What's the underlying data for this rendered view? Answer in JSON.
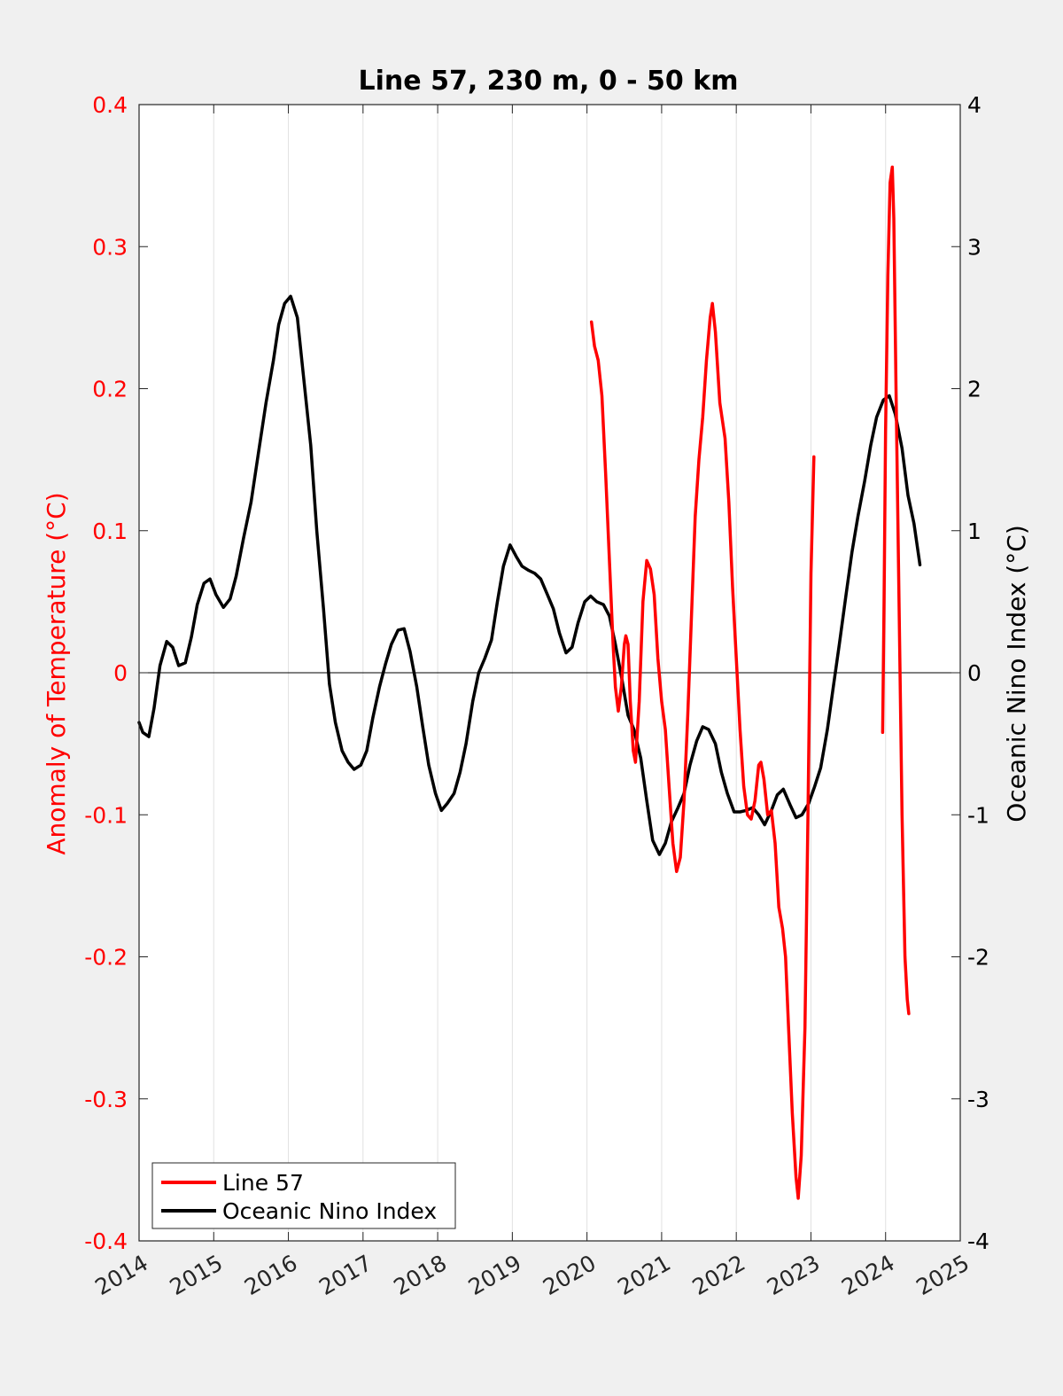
{
  "chart_data": {
    "type": "line",
    "title": "Line 57, 230 m, 0 - 50 km",
    "xlabel": "",
    "ylabel_left": "Anomaly of Temperature (°C)",
    "ylabel_right": "Oceanic Nino Index (°C)",
    "xlim": [
      2014,
      2025
    ],
    "ylim_left": [
      -0.4,
      0.4
    ],
    "ylim_right": [
      -4,
      4
    ],
    "x_ticks": [
      "2014",
      "2015",
      "2016",
      "2017",
      "2018",
      "2019",
      "2020",
      "2021",
      "2022",
      "2023",
      "2024",
      "2025"
    ],
    "y_left_ticks": [
      "-0.4",
      "-0.3",
      "-0.2",
      "-0.1",
      "0",
      "0.1",
      "0.2",
      "0.3",
      "0.4"
    ],
    "y_right_ticks": [
      "-4",
      "-3",
      "-2",
      "-1",
      "0",
      "1",
      "2",
      "3",
      "4"
    ],
    "grid": "vertical",
    "zero_line": true,
    "legend_position": "bottom-left",
    "colors": {
      "line57": "#ff0000",
      "oni": "#000000",
      "left_axis": "#ff0000",
      "right_axis": "#000000"
    },
    "series": [
      {
        "name": "Line 57",
        "axis": "left",
        "segments": [
          [
            [
              2020.06,
              0.247
            ],
            [
              2020.1,
              0.23
            ],
            [
              2020.15,
              0.22
            ],
            [
              2020.2,
              0.195
            ],
            [
              2020.25,
              0.14
            ],
            [
              2020.3,
              0.08
            ],
            [
              2020.35,
              0.02
            ],
            [
              2020.38,
              -0.01
            ],
            [
              2020.42,
              -0.027
            ],
            [
              2020.46,
              -0.01
            ],
            [
              2020.5,
              0.02
            ],
            [
              2020.52,
              0.026
            ],
            [
              2020.55,
              0.02
            ],
            [
              2020.58,
              -0.02
            ],
            [
              2020.62,
              -0.055
            ],
            [
              2020.65,
              -0.063
            ],
            [
              2020.7,
              -0.02
            ],
            [
              2020.75,
              0.05
            ],
            [
              2020.8,
              0.079
            ],
            [
              2020.85,
              0.073
            ],
            [
              2020.9,
              0.055
            ],
            [
              2020.95,
              0.01
            ],
            [
              2021.0,
              -0.02
            ],
            [
              2021.05,
              -0.04
            ],
            [
              2021.1,
              -0.08
            ],
            [
              2021.15,
              -0.12
            ],
            [
              2021.2,
              -0.14
            ],
            [
              2021.25,
              -0.13
            ],
            [
              2021.3,
              -0.09
            ],
            [
              2021.35,
              -0.03
            ],
            [
              2021.4,
              0.04
            ],
            [
              2021.45,
              0.11
            ],
            [
              2021.5,
              0.15
            ],
            [
              2021.55,
              0.18
            ],
            [
              2021.6,
              0.22
            ],
            [
              2021.65,
              0.25
            ],
            [
              2021.68,
              0.26
            ],
            [
              2021.72,
              0.24
            ],
            [
              2021.78,
              0.19
            ],
            [
              2021.85,
              0.165
            ],
            [
              2021.9,
              0.12
            ],
            [
              2021.95,
              0.06
            ],
            [
              2022.0,
              0.01
            ],
            [
              2022.05,
              -0.04
            ],
            [
              2022.1,
              -0.08
            ],
            [
              2022.15,
              -0.1
            ],
            [
              2022.2,
              -0.103
            ],
            [
              2022.25,
              -0.09
            ],
            [
              2022.3,
              -0.065
            ],
            [
              2022.33,
              -0.063
            ],
            [
              2022.37,
              -0.075
            ],
            [
              2022.42,
              -0.1
            ],
            [
              2022.47,
              -0.097
            ],
            [
              2022.52,
              -0.12
            ],
            [
              2022.57,
              -0.165
            ],
            [
              2022.62,
              -0.18
            ],
            [
              2022.66,
              -0.2
            ],
            [
              2022.7,
              -0.25
            ],
            [
              2022.75,
              -0.31
            ],
            [
              2022.8,
              -0.355
            ],
            [
              2022.83,
              -0.37
            ],
            [
              2022.87,
              -0.34
            ],
            [
              2022.92,
              -0.25
            ],
            [
              2022.96,
              -0.1
            ],
            [
              2023.0,
              0.07
            ],
            [
              2023.04,
              0.152
            ]
          ],
          [
            [
              2023.96,
              -0.042
            ],
            [
              2023.98,
              0.05
            ],
            [
              2024.0,
              0.17
            ],
            [
              2024.03,
              0.28
            ],
            [
              2024.06,
              0.345
            ],
            [
              2024.09,
              0.356
            ],
            [
              2024.11,
              0.32
            ],
            [
              2024.14,
              0.2
            ],
            [
              2024.18,
              0.05
            ],
            [
              2024.22,
              -0.1
            ],
            [
              2024.26,
              -0.2
            ],
            [
              2024.29,
              -0.23
            ],
            [
              2024.31,
              -0.24
            ]
          ]
        ]
      },
      {
        "name": "Oceanic Nino Index",
        "axis": "right",
        "points": [
          [
            2014.0,
            -0.35
          ],
          [
            2014.05,
            -0.42
          ],
          [
            2014.13,
            -0.45
          ],
          [
            2014.2,
            -0.25
          ],
          [
            2014.28,
            0.05
          ],
          [
            2014.37,
            0.22
          ],
          [
            2014.45,
            0.18
          ],
          [
            2014.53,
            0.05
          ],
          [
            2014.62,
            0.07
          ],
          [
            2014.7,
            0.25
          ],
          [
            2014.78,
            0.48
          ],
          [
            2014.87,
            0.63
          ],
          [
            2014.95,
            0.66
          ],
          [
            2015.03,
            0.55
          ],
          [
            2015.13,
            0.46
          ],
          [
            2015.22,
            0.52
          ],
          [
            2015.3,
            0.68
          ],
          [
            2015.4,
            0.95
          ],
          [
            2015.5,
            1.2
          ],
          [
            2015.6,
            1.55
          ],
          [
            2015.7,
            1.9
          ],
          [
            2015.8,
            2.2
          ],
          [
            2015.87,
            2.45
          ],
          [
            2015.95,
            2.6
          ],
          [
            2016.03,
            2.65
          ],
          [
            2016.12,
            2.5
          ],
          [
            2016.2,
            2.1
          ],
          [
            2016.3,
            1.6
          ],
          [
            2016.38,
            1.0
          ],
          [
            2016.47,
            0.45
          ],
          [
            2016.55,
            -0.08
          ],
          [
            2016.63,
            -0.35
          ],
          [
            2016.72,
            -0.55
          ],
          [
            2016.8,
            -0.63
          ],
          [
            2016.88,
            -0.68
          ],
          [
            2016.97,
            -0.65
          ],
          [
            2017.05,
            -0.55
          ],
          [
            2017.13,
            -0.32
          ],
          [
            2017.22,
            -0.1
          ],
          [
            2017.3,
            0.06
          ],
          [
            2017.38,
            0.2
          ],
          [
            2017.47,
            0.3
          ],
          [
            2017.55,
            0.31
          ],
          [
            2017.63,
            0.15
          ],
          [
            2017.72,
            -0.1
          ],
          [
            2017.8,
            -0.38
          ],
          [
            2017.88,
            -0.65
          ],
          [
            2017.97,
            -0.85
          ],
          [
            2018.05,
            -0.97
          ],
          [
            2018.13,
            -0.92
          ],
          [
            2018.22,
            -0.85
          ],
          [
            2018.3,
            -0.7
          ],
          [
            2018.38,
            -0.5
          ],
          [
            2018.47,
            -0.2
          ],
          [
            2018.55,
            0.0
          ],
          [
            2018.63,
            0.1
          ],
          [
            2018.72,
            0.23
          ],
          [
            2018.8,
            0.5
          ],
          [
            2018.88,
            0.75
          ],
          [
            2018.97,
            0.9
          ],
          [
            2019.05,
            0.82
          ],
          [
            2019.13,
            0.75
          ],
          [
            2019.22,
            0.72
          ],
          [
            2019.3,
            0.7
          ],
          [
            2019.38,
            0.66
          ],
          [
            2019.47,
            0.55
          ],
          [
            2019.55,
            0.45
          ],
          [
            2019.63,
            0.28
          ],
          [
            2019.72,
            0.14
          ],
          [
            2019.8,
            0.18
          ],
          [
            2019.88,
            0.35
          ],
          [
            2019.97,
            0.5
          ],
          [
            2020.05,
            0.54
          ],
          [
            2020.13,
            0.5
          ],
          [
            2020.22,
            0.48
          ],
          [
            2020.3,
            0.4
          ],
          [
            2020.38,
            0.2
          ],
          [
            2020.47,
            -0.05
          ],
          [
            2020.55,
            -0.3
          ],
          [
            2020.63,
            -0.4
          ],
          [
            2020.72,
            -0.6
          ],
          [
            2020.8,
            -0.9
          ],
          [
            2020.88,
            -1.18
          ],
          [
            2020.97,
            -1.28
          ],
          [
            2021.05,
            -1.2
          ],
          [
            2021.13,
            -1.05
          ],
          [
            2021.22,
            -0.95
          ],
          [
            2021.3,
            -0.85
          ],
          [
            2021.38,
            -0.65
          ],
          [
            2021.47,
            -0.48
          ],
          [
            2021.55,
            -0.38
          ],
          [
            2021.63,
            -0.4
          ],
          [
            2021.72,
            -0.5
          ],
          [
            2021.8,
            -0.7
          ],
          [
            2021.88,
            -0.85
          ],
          [
            2021.97,
            -0.98
          ],
          [
            2022.05,
            -0.98
          ],
          [
            2022.13,
            -0.97
          ],
          [
            2022.22,
            -0.95
          ],
          [
            2022.3,
            -1.0
          ],
          [
            2022.38,
            -1.07
          ],
          [
            2022.47,
            -0.97
          ],
          [
            2022.55,
            -0.86
          ],
          [
            2022.63,
            -0.82
          ],
          [
            2022.72,
            -0.93
          ],
          [
            2022.8,
            -1.02
          ],
          [
            2022.88,
            -1.0
          ],
          [
            2022.97,
            -0.92
          ],
          [
            2023.05,
            -0.8
          ],
          [
            2023.13,
            -0.67
          ],
          [
            2023.22,
            -0.4
          ],
          [
            2023.3,
            -0.1
          ],
          [
            2023.38,
            0.2
          ],
          [
            2023.47,
            0.55
          ],
          [
            2023.55,
            0.85
          ],
          [
            2023.63,
            1.1
          ],
          [
            2023.72,
            1.35
          ],
          [
            2023.8,
            1.6
          ],
          [
            2023.88,
            1.8
          ],
          [
            2023.97,
            1.92
          ],
          [
            2024.05,
            1.95
          ],
          [
            2024.13,
            1.82
          ],
          [
            2024.22,
            1.58
          ],
          [
            2024.3,
            1.25
          ],
          [
            2024.38,
            1.05
          ],
          [
            2024.46,
            0.76
          ]
        ]
      }
    ]
  }
}
